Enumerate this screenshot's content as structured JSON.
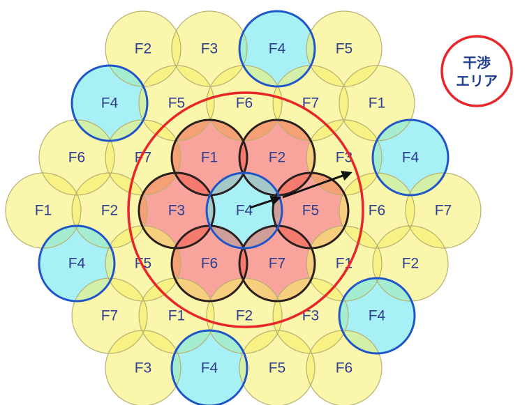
{
  "legend": {
    "line1": "干渉",
    "line2": "エリア",
    "ring_color": "#e8262a"
  },
  "colors": {
    "yellow_fill": "#f6ef66",
    "cyan_fill": "#5ee6ee",
    "red_fill": "#f25a4a",
    "cell_edge_light": "#b8b070",
    "cell_edge_blue": "#1f55c8",
    "cell_edge_dark": "#2a1f1f",
    "interference_ring": "#e8262a",
    "arrow": "#111111",
    "label_text": "#2e3f8f"
  },
  "cells": [
    {
      "label": "F2",
      "kind": "yellow"
    },
    {
      "label": "F3",
      "kind": "yellow"
    },
    {
      "label": "F4",
      "kind": "cyan"
    },
    {
      "label": "F5",
      "kind": "yellow"
    },
    {
      "label": "F4",
      "kind": "cyan"
    },
    {
      "label": "F5",
      "kind": "yellow"
    },
    {
      "label": "F6",
      "kind": "yellow"
    },
    {
      "label": "F7",
      "kind": "yellow"
    },
    {
      "label": "F1",
      "kind": "yellow"
    },
    {
      "label": "F6",
      "kind": "yellow"
    },
    {
      "label": "F7",
      "kind": "yellow"
    },
    {
      "label": "F1",
      "kind": "red"
    },
    {
      "label": "F2",
      "kind": "red"
    },
    {
      "label": "F3",
      "kind": "yellow"
    },
    {
      "label": "F4",
      "kind": "cyan"
    },
    {
      "label": "F1",
      "kind": "yellow"
    },
    {
      "label": "F2",
      "kind": "yellow"
    },
    {
      "label": "F3",
      "kind": "red"
    },
    {
      "label": "F4",
      "kind": "cyan"
    },
    {
      "label": "F5",
      "kind": "red"
    },
    {
      "label": "F6",
      "kind": "yellow"
    },
    {
      "label": "F7",
      "kind": "yellow"
    },
    {
      "label": "F4",
      "kind": "cyan"
    },
    {
      "label": "F5",
      "kind": "yellow"
    },
    {
      "label": "F6",
      "kind": "red"
    },
    {
      "label": "F7",
      "kind": "red"
    },
    {
      "label": "F1",
      "kind": "yellow"
    },
    {
      "label": "F2",
      "kind": "yellow"
    },
    {
      "label": "F7",
      "kind": "yellow"
    },
    {
      "label": "F1",
      "kind": "yellow"
    },
    {
      "label": "F2",
      "kind": "yellow"
    },
    {
      "label": "F3",
      "kind": "yellow"
    },
    {
      "label": "F4",
      "kind": "cyan"
    },
    {
      "label": "F3",
      "kind": "yellow"
    },
    {
      "label": "F4",
      "kind": "cyan"
    },
    {
      "label": "F5",
      "kind": "yellow"
    },
    {
      "label": "F6",
      "kind": "yellow"
    }
  ]
}
